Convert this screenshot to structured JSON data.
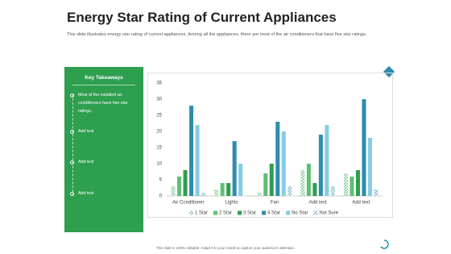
{
  "title": "Energy Star Rating of Current Appliances",
  "subtitle": "This slide illustrates energy star rating of current appliances. Among all the appliances, there are most of the air conditioners that have five star ratings.",
  "panel": {
    "heading": "Key Takeaways",
    "items": [
      "Most of the installed air conditioners have five-star ratings.",
      "Add text",
      "Add text",
      "Add text"
    ]
  },
  "footer": "This slide is 100% editable. Adapt it to your needs & capture your audience's attention.",
  "chart_data": {
    "type": "bar",
    "categories": [
      "Air Conditioner",
      "Lights",
      "Fan",
      "Add text",
      "Add text"
    ],
    "series": [
      {
        "name": "1 Star",
        "color": "#3aa65a",
        "pattern": "hatch",
        "values": [
          3,
          2,
          1,
          8,
          7
        ]
      },
      {
        "name": "2 Star",
        "color": "#5cbf73",
        "values": [
          6,
          4,
          7,
          10,
          6
        ]
      },
      {
        "name": "3 Star",
        "color": "#2e9e4f",
        "values": [
          8,
          4,
          10,
          4,
          8
        ]
      },
      {
        "name": "4 Star",
        "color": "#2e8bb0",
        "values": [
          28,
          17,
          23,
          19,
          30
        ]
      },
      {
        "name": "No Star",
        "color": "#86cbe3",
        "values": [
          22,
          10,
          20,
          22,
          18
        ]
      },
      {
        "name": "Not Sure",
        "color": "#2e8bb0",
        "pattern": "hatch",
        "values": [
          1,
          0,
          3,
          3,
          2
        ]
      }
    ],
    "ylim": [
      0,
      35
    ],
    "yticks": [
      0,
      5,
      10,
      15,
      20,
      25,
      30,
      35
    ],
    "grid": false,
    "legend": "bottom"
  }
}
